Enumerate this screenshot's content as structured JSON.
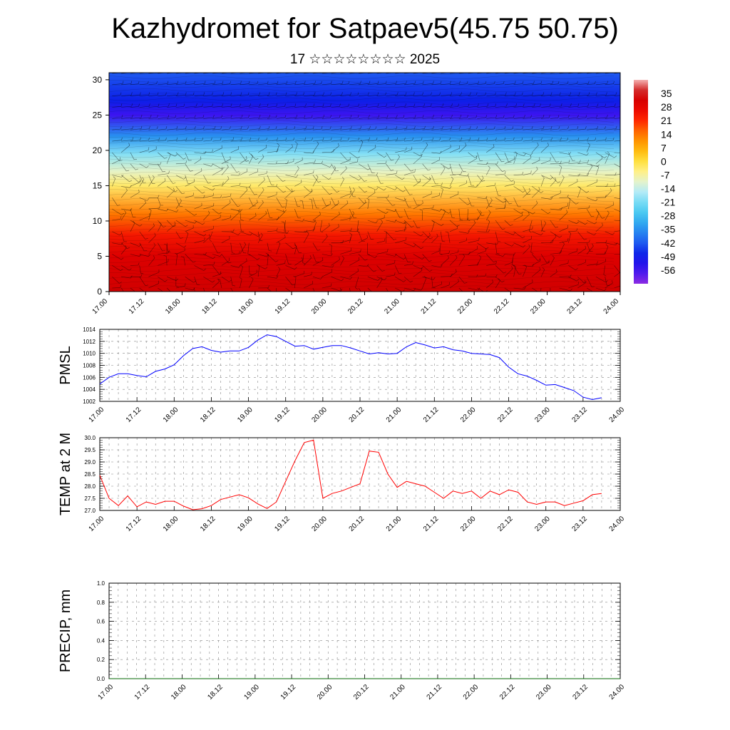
{
  "header": {
    "title": "Kazhydromet for Satpaev5(45.75 50.75)",
    "subtitle": "17 ☆☆☆☆☆☆☆☆ 2025"
  },
  "x_ticks": [
    "17.00",
    "17.12",
    "18.00",
    "18.12",
    "19.00",
    "19.12",
    "20.00",
    "20.12",
    "21.00",
    "21.12",
    "22.00",
    "22.12",
    "23.00",
    "23.12",
    "24.00"
  ],
  "chart_data": [
    {
      "type": "heatmap",
      "title": "",
      "xlabel": "",
      "ylabel": "",
      "x_tick_labels": [
        "17.00",
        "17.12",
        "18.00",
        "18.12",
        "19.00",
        "19.12",
        "20.00",
        "20.12",
        "21.00",
        "21.12",
        "22.00",
        "22.12",
        "23.00",
        "23.12",
        "24.00"
      ],
      "y_tick_labels": [
        "0",
        "5",
        "10",
        "15",
        "20",
        "25",
        "30"
      ],
      "ylim": [
        0,
        31
      ],
      "x_range_hours": [
        0,
        168
      ],
      "temperature_by_level": [
        {
          "level": 0,
          "value": 33
        },
        {
          "level": 5,
          "value": 30
        },
        {
          "level": 8,
          "value": 24
        },
        {
          "level": 11,
          "value": 14
        },
        {
          "level": 15,
          "value": -3
        },
        {
          "level": 17,
          "value": -10
        },
        {
          "level": 19.5,
          "value": -20
        },
        {
          "level": 22,
          "value": -35
        },
        {
          "level": 25,
          "value": -56
        },
        {
          "level": 27,
          "value": -48
        },
        {
          "level": 31,
          "value": -42
        }
      ],
      "colorbar_labels": [
        "35",
        "28",
        "21",
        "14",
        "7",
        "0",
        "-7",
        "-14",
        "-21",
        "-28",
        "-35",
        "-42",
        "-49",
        "-56"
      ],
      "colorbar_range": [
        -63,
        42
      ],
      "overlay": "wind barbs"
    },
    {
      "type": "line",
      "ylabel": "PMSL",
      "ylim": [
        1002,
        1014
      ],
      "y_tick_labels": [
        "1002",
        "1004",
        "1006",
        "1008",
        "1010",
        "1012",
        "1014"
      ],
      "x_tick_labels": [
        "17.00",
        "17.12",
        "18.00",
        "18.12",
        "19.00",
        "19.12",
        "20.00",
        "20.12",
        "21.00",
        "21.12",
        "22.00",
        "22.12",
        "23.00",
        "23.12",
        "24.00"
      ],
      "color": "#0000ff",
      "x": [
        0,
        3,
        6,
        9,
        12,
        15,
        18,
        21,
        24,
        27,
        30,
        33,
        36,
        39,
        42,
        45,
        48,
        51,
        54,
        57,
        60,
        63,
        66,
        69,
        72,
        75,
        78,
        81,
        84,
        87,
        90,
        93,
        96,
        99,
        102,
        105,
        108,
        111,
        114,
        117,
        120,
        123,
        126,
        129,
        132,
        135,
        138,
        141,
        144,
        147,
        150,
        153,
        156,
        159,
        162
      ],
      "values": [
        1004.9,
        1006.0,
        1006.6,
        1006.6,
        1006.3,
        1006.1,
        1007.0,
        1007.4,
        1008.1,
        1009.6,
        1010.8,
        1011.1,
        1010.5,
        1010.2,
        1010.4,
        1010.4,
        1011.0,
        1012.2,
        1013.1,
        1012.8,
        1012.0,
        1011.2,
        1011.3,
        1010.7,
        1011.0,
        1011.3,
        1011.3,
        1010.9,
        1010.4,
        1009.9,
        1010.1,
        1009.9,
        1010.0,
        1011.1,
        1011.8,
        1011.4,
        1010.9,
        1011.1,
        1010.6,
        1010.4,
        1010.0,
        1009.9,
        1009.8,
        1009.3,
        1007.7,
        1006.6,
        1006.2,
        1005.5,
        1004.7,
        1004.8,
        1004.3,
        1003.8,
        1002.7,
        1002.3,
        1002.6
      ]
    },
    {
      "type": "line",
      "ylabel": "TEMP at 2 M",
      "ylim": [
        27.0,
        30.0
      ],
      "y_tick_labels": [
        "27.0",
        "27.5",
        "28.0",
        "28.5",
        "29.0",
        "29.5",
        "30.0"
      ],
      "x_tick_labels": [
        "17.00",
        "17.12",
        "18.00",
        "18.12",
        "19.00",
        "19.12",
        "20.00",
        "20.12",
        "21.00",
        "21.12",
        "22.00",
        "22.12",
        "23.00",
        "23.12",
        "24.00"
      ],
      "color": "#ff0000",
      "x": [
        0,
        3,
        6,
        9,
        12,
        15,
        18,
        21,
        24,
        27,
        30,
        33,
        36,
        39,
        42,
        45,
        48,
        51,
        54,
        57,
        60,
        63,
        66,
        69,
        72,
        75,
        78,
        81,
        84,
        87,
        90,
        93,
        96,
        99,
        102,
        105,
        108,
        111,
        114,
        117,
        120,
        123,
        126,
        129,
        132,
        135,
        138,
        141,
        144,
        147,
        150,
        153,
        156,
        159,
        162
      ],
      "values": [
        28.45,
        27.5,
        27.2,
        27.6,
        27.15,
        27.35,
        27.25,
        27.38,
        27.38,
        27.18,
        27.03,
        27.07,
        27.2,
        27.45,
        27.55,
        27.65,
        27.52,
        27.27,
        27.08,
        27.35,
        28.2,
        29.05,
        29.8,
        29.9,
        27.5,
        27.7,
        27.8,
        27.95,
        28.1,
        29.45,
        29.4,
        28.5,
        27.95,
        28.2,
        28.1,
        28.0,
        27.75,
        27.5,
        27.8,
        27.7,
        27.8,
        27.5,
        27.8,
        27.65,
        27.85,
        27.75,
        27.35,
        27.25,
        27.35,
        27.35,
        27.2,
        27.3,
        27.4,
        27.65,
        27.7
      ]
    },
    {
      "type": "line",
      "ylabel": "PRECIP, mm",
      "ylim": [
        0.0,
        1.0
      ],
      "y_tick_labels": [
        "0.0",
        "0.2",
        "0.4",
        "0.6",
        "0.8",
        "1.0"
      ],
      "x_tick_labels": [
        "17.00",
        "17.12",
        "18.00",
        "18.12",
        "19.00",
        "19.12",
        "20.00",
        "20.12",
        "21.00",
        "21.12",
        "22.00",
        "22.12",
        "23.00",
        "23.12",
        "24.00"
      ],
      "color": "#006400",
      "x": [
        0,
        168
      ],
      "values": [
        0,
        0
      ]
    }
  ]
}
